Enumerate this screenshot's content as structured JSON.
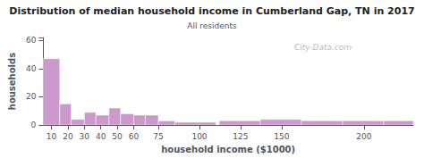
{
  "chart_data": {
    "type": "bar",
    "title": "Distribution of median household income in Cumberland Gap, TN in 2017",
    "subtitle": "All residents",
    "xlabel": "household income ($1000)",
    "ylabel": "households",
    "bin_left": [
      5,
      15,
      22,
      30,
      37,
      45,
      52,
      60,
      67,
      75,
      85,
      112,
      137,
      162,
      187,
      212
    ],
    "bin_width": [
      10,
      7,
      8,
      7,
      8,
      7,
      8,
      7,
      8,
      10,
      25,
      25,
      25,
      25,
      25,
      20
    ],
    "values": [
      47,
      15,
      4,
      9,
      7,
      12,
      8,
      7,
      7,
      3,
      2,
      3,
      4,
      3,
      3,
      3
    ],
    "color": "#cc99cc",
    "xlim": [
      5,
      230
    ],
    "ylim": [
      0,
      62
    ],
    "xticks": [
      10,
      20,
      30,
      40,
      50,
      60,
      75,
      100,
      125,
      150,
      200
    ],
    "yticks": [
      0,
      20,
      40,
      60
    ],
    "grid": false,
    "annotation": "City-Data.com"
  }
}
